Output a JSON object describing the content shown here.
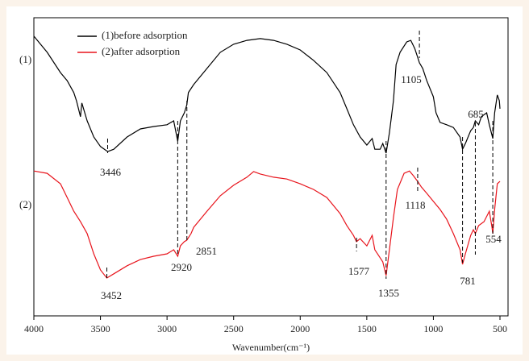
{
  "chart_data": {
    "type": "line",
    "xlabel": "Wavenumber(cm⁻¹)",
    "xlim": [
      4000,
      500
    ],
    "xticks": [
      4000,
      3500,
      3000,
      2500,
      2000,
      1500,
      1000,
      500
    ],
    "ylim": [
      0,
      100
    ],
    "legend": "upper left",
    "series": [
      {
        "name": "(1)before adsorption",
        "label": "(1)",
        "color": "#000000",
        "x": [
          4000,
          3900,
          3800,
          3750,
          3700,
          3680,
          3650,
          3640,
          3600,
          3550,
          3500,
          3446,
          3400,
          3300,
          3200,
          3100,
          3000,
          2950,
          2920,
          2900,
          2870,
          2851,
          2840,
          2800,
          2700,
          2600,
          2500,
          2400,
          2300,
          2200,
          2100,
          2000,
          1900,
          1800,
          1700,
          1650,
          1600,
          1550,
          1500,
          1460,
          1440,
          1400,
          1380,
          1355,
          1330,
          1300,
          1280,
          1250,
          1200,
          1170,
          1140,
          1120,
          1105,
          1080,
          1050,
          1000,
          980,
          950,
          900,
          850,
          800,
          781,
          760,
          720,
          700,
          685,
          660,
          640,
          600,
          580,
          554,
          540,
          520,
          505,
          500
        ],
        "values": [
          93.8,
          88.4,
          81.6,
          78.9,
          74.9,
          72.2,
          66.8,
          71.4,
          65.4,
          60.0,
          56.8,
          55.1,
          55.9,
          60.0,
          62.7,
          63.5,
          64.1,
          65.4,
          58.6,
          65.4,
          68.1,
          70.8,
          74.9,
          77.6,
          83.0,
          88.4,
          91.1,
          92.4,
          93.0,
          92.4,
          91.1,
          89.2,
          85.7,
          81.6,
          74.9,
          69.5,
          64.1,
          60.0,
          57.3,
          59.5,
          55.9,
          55.9,
          57.8,
          54.6,
          61.4,
          72.2,
          84.3,
          88.4,
          91.9,
          92.4,
          89.7,
          87.0,
          84.9,
          83.0,
          78.9,
          73.5,
          68.1,
          64.9,
          64.1,
          63.2,
          60.0,
          55.9,
          57.8,
          62.1,
          63.2,
          65.4,
          64.1,
          66.8,
          68.1,
          64.1,
          59.5,
          68.1,
          74.1,
          72.2,
          69.5
        ]
      },
      {
        "name": "(2)after adsorption",
        "label": "(2)",
        "color": "#e8141c",
        "x": [
          4000,
          3900,
          3800,
          3750,
          3700,
          3650,
          3600,
          3550,
          3500,
          3452,
          3400,
          3300,
          3200,
          3100,
          3000,
          2950,
          2920,
          2900,
          2870,
          2851,
          2820,
          2800,
          2700,
          2600,
          2500,
          2400,
          2350,
          2300,
          2200,
          2100,
          2000,
          1900,
          1800,
          1700,
          1650,
          1600,
          1577,
          1550,
          1500,
          1460,
          1440,
          1400,
          1380,
          1355,
          1330,
          1300,
          1270,
          1220,
          1180,
          1150,
          1118,
          1090,
          1050,
          1000,
          950,
          900,
          850,
          800,
          781,
          760,
          720,
          700,
          685,
          660,
          620,
          580,
          560,
          554,
          540,
          520,
          500
        ],
        "values": [
          48.6,
          47.8,
          44.3,
          39.7,
          35.1,
          31.6,
          27.6,
          20.8,
          15.4,
          12.7,
          14.1,
          16.8,
          18.9,
          20.0,
          20.8,
          22.2,
          20.0,
          23.5,
          24.9,
          25.4,
          27.6,
          29.7,
          35.1,
          40.3,
          43.8,
          46.5,
          48.4,
          47.6,
          46.5,
          45.9,
          44.3,
          42.4,
          39.7,
          34.3,
          30.3,
          27.0,
          24.9,
          25.9,
          23.5,
          27.0,
          22.2,
          19.5,
          18.1,
          13.5,
          22.2,
          33.0,
          42.4,
          47.8,
          48.6,
          47.0,
          45.1,
          43.2,
          41.1,
          38.4,
          35.7,
          32.4,
          27.6,
          22.2,
          17.3,
          20.8,
          27.0,
          28.9,
          27.6,
          30.3,
          31.6,
          35.1,
          29.7,
          27.6,
          35.7,
          44.3,
          45.1
        ]
      }
    ],
    "annotations": [
      {
        "text": "3446",
        "x": 3446
      },
      {
        "text": "1105",
        "x": 1105
      },
      {
        "text": "685",
        "x": 685
      },
      {
        "text": "3452",
        "x": 3452
      },
      {
        "text": "2920",
        "x": 2920
      },
      {
        "text": "2851",
        "x": 2851
      },
      {
        "text": "1577",
        "x": 1577
      },
      {
        "text": "1355",
        "x": 1355
      },
      {
        "text": "1118",
        "x": 1118
      },
      {
        "text": "781",
        "x": 781
      },
      {
        "text": "554",
        "x": 554
      }
    ]
  }
}
